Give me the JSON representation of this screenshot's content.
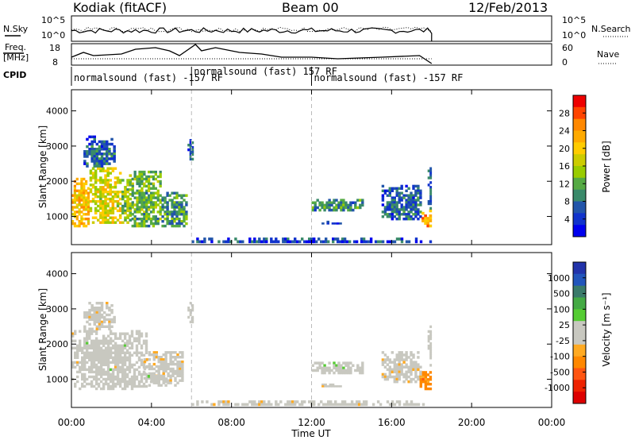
{
  "header": {
    "station": "Kodiak (fitACF)",
    "beam": "Beam 00",
    "date": "12/Feb/2013"
  },
  "aux_panels": {
    "nsky": {
      "label": "N.Sky",
      "ticks": [
        "10^5",
        "10^0"
      ]
    },
    "nsearch": {
      "label": "N.Search",
      "ticks": [
        "10^5",
        "10^0"
      ]
    },
    "freq": {
      "label_line1": "Freq.",
      "label_line2": "[MHz]",
      "ticks": [
        "18",
        "8"
      ]
    },
    "nave": {
      "label": "Nave",
      "ticks": [
        "60",
        "0"
      ]
    },
    "cpid": {
      "label": "CPID",
      "segments": [
        {
          "label": "normalsound (fast) -157 RF",
          "start_hour": 0.0,
          "end_hour": 6.0
        },
        {
          "label": "normalsound (fast) 157 RF",
          "start_hour": 6.0,
          "end_hour": 12.0
        },
        {
          "label": "normalsound (fast) -157 RF",
          "start_hour": 12.0,
          "end_hour": 18.0
        }
      ]
    }
  },
  "axes": {
    "x_ticks": [
      "00:00",
      "04:00",
      "08:00",
      "12:00",
      "16:00",
      "20:00",
      "00:00"
    ],
    "x_label": "Time UT",
    "y_label": "Slant Range [km]",
    "y_ticks": [
      "1000",
      "2000",
      "3000",
      "4000"
    ]
  },
  "colorbars": {
    "power": {
      "label": "Power [dB]",
      "ticks": [
        "28",
        "24",
        "20",
        "16",
        "12",
        "8",
        "4"
      ],
      "colors": [
        "#ee0000",
        "#ff4400",
        "#ff8800",
        "#ffaa00",
        "#ffcc00",
        "#cccc00",
        "#99cc00",
        "#55aa44",
        "#3a8a6a",
        "#2255aa",
        "#1133cc",
        "#0000ee"
      ]
    },
    "velocity": {
      "label": "Velocity [m s⁻¹]",
      "ticks": [
        "1000",
        "500",
        "100",
        "25",
        "-25",
        "-100",
        "-500",
        "-1000"
      ],
      "colors": [
        "#2233aa",
        "#2255bb",
        "#3a7a6a",
        "#44aa44",
        "#55cc33",
        "#c8c8c0",
        "#c8c8c0",
        "#ffaa22",
        "#ff8800",
        "#ff5511",
        "#ee2200",
        "#dd0000"
      ]
    }
  },
  "chart_data": [
    {
      "type": "heatmap",
      "title": "Power",
      "xlabel": "Time UT",
      "ylabel": "Slant Range [km]",
      "xlim_hours": [
        0,
        24
      ],
      "ylim_km": [
        200,
        4600
      ],
      "colorbar_label": "Power [dB]",
      "colorbar_range": [
        0,
        32
      ],
      "dashed_lines_hours": [
        6.0,
        12.0
      ],
      "regions": [
        {
          "t0": 0.0,
          "t1": 0.9,
          "r0": 700,
          "r1": 2100,
          "value": 22
        },
        {
          "t0": 0.9,
          "t1": 2.5,
          "r0": 800,
          "r1": 2400,
          "value": 18
        },
        {
          "t0": 2.5,
          "t1": 3.0,
          "r0": 800,
          "r1": 2200,
          "value": 14
        },
        {
          "t0": 3.0,
          "t1": 4.5,
          "r0": 700,
          "r1": 2300,
          "value": 12
        },
        {
          "t0": 4.5,
          "t1": 5.8,
          "r0": 700,
          "r1": 1700,
          "value": 10
        },
        {
          "t0": 0.6,
          "t1": 2.2,
          "r0": 2400,
          "r1": 3300,
          "value": 6
        },
        {
          "t0": 5.8,
          "t1": 6.1,
          "r0": 2600,
          "r1": 3200,
          "value": 5
        },
        {
          "t0": 12.0,
          "t1": 14.6,
          "r0": 1150,
          "r1": 1500,
          "value": 9
        },
        {
          "t0": 12.5,
          "t1": 13.5,
          "r0": 780,
          "r1": 880,
          "value": 5
        },
        {
          "t0": 15.5,
          "t1": 17.5,
          "r0": 900,
          "r1": 1900,
          "value": 6
        },
        {
          "t0": 17.5,
          "t1": 18.0,
          "r0": 700,
          "r1": 1200,
          "value": 24
        },
        {
          "t0": 17.8,
          "t1": 18.0,
          "r0": 1200,
          "r1": 2600,
          "value": 6
        },
        {
          "t0": 6.0,
          "t1": 18.0,
          "r0": 250,
          "r1": 400,
          "value": 4
        }
      ]
    },
    {
      "type": "heatmap",
      "title": "Velocity",
      "xlabel": "Time UT",
      "ylabel": "Slant Range [km]",
      "xlim_hours": [
        0,
        24
      ],
      "ylim_km": [
        200,
        4600
      ],
      "colorbar_label": "Velocity [m s⁻¹]",
      "colorbar_range": [
        -1000,
        1000
      ],
      "dashed_lines_hours": [
        6.0,
        12.0
      ],
      "regions": [
        {
          "t0": 0.0,
          "t1": 3.8,
          "r0": 700,
          "r1": 2400,
          "value": 0
        },
        {
          "t0": 3.6,
          "t1": 5.6,
          "r0": 800,
          "r1": 1800,
          "value": -150
        },
        {
          "t0": 3.8,
          "t1": 4.8,
          "r0": 900,
          "r1": 1200,
          "value": 110
        },
        {
          "t0": 0.6,
          "t1": 2.2,
          "r0": 2400,
          "r1": 3200,
          "value": -150
        },
        {
          "t0": 5.8,
          "t1": 6.1,
          "r0": 2600,
          "r1": 3200,
          "value": 0
        },
        {
          "t0": 12.0,
          "t1": 14.6,
          "r0": 1150,
          "r1": 1500,
          "value": 110
        },
        {
          "t0": 12.5,
          "t1": 13.5,
          "r0": 780,
          "r1": 880,
          "value": -150
        },
        {
          "t0": 15.5,
          "t1": 17.5,
          "r0": 900,
          "r1": 1800,
          "value": -150
        },
        {
          "t0": 17.4,
          "t1": 18.0,
          "r0": 700,
          "r1": 1300,
          "value": -400
        },
        {
          "t0": 17.8,
          "t1": 18.0,
          "r0": 1300,
          "r1": 2600,
          "value": 110
        },
        {
          "t0": 6.0,
          "t1": 18.0,
          "r0": 250,
          "r1": 400,
          "value": -150
        }
      ]
    }
  ]
}
